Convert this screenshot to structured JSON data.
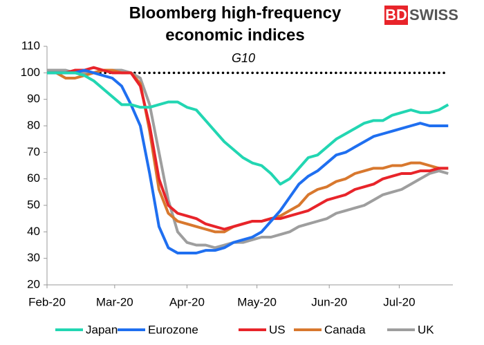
{
  "chart_data": {
    "type": "line",
    "title": [
      "Bloomberg high-frequency",
      "economic indices"
    ],
    "subtitle": "G10",
    "logo": {
      "mark": "BD",
      "text": "SWISS"
    },
    "x": [
      0,
      4,
      8,
      12,
      16,
      20,
      24,
      28,
      32,
      36,
      40,
      44,
      48,
      52,
      56,
      60,
      64,
      68,
      72,
      76,
      80,
      84,
      88,
      92,
      96,
      100,
      104,
      108,
      112,
      116,
      120,
      124,
      128,
      132,
      136,
      140,
      144,
      148,
      152,
      156,
      160,
      164,
      168,
      172
    ],
    "xlim": [
      0,
      174
    ],
    "xticks": [
      {
        "value": 0,
        "label": "Feb-20"
      },
      {
        "value": 29,
        "label": "Mar-20"
      },
      {
        "value": 60,
        "label": "Apr-20"
      },
      {
        "value": 90,
        "label": "May-20"
      },
      {
        "value": 121,
        "label": "Jun-20"
      },
      {
        "value": 151,
        "label": "Jul-20"
      }
    ],
    "ylim": [
      20,
      110
    ],
    "yticks": [
      20,
      30,
      40,
      50,
      60,
      70,
      80,
      90,
      100,
      110
    ],
    "reference_line": 100,
    "legend": "bottom",
    "series": [
      {
        "name": "Japan",
        "color": "#22d6b2",
        "values": [
          100,
          100,
          100,
          100,
          99,
          97,
          94,
          91,
          88,
          88,
          87,
          87,
          88,
          89,
          89,
          87,
          86,
          82,
          78,
          74,
          71,
          68,
          66,
          65,
          62,
          58,
          60,
          64,
          68,
          69,
          72,
          75,
          77,
          79,
          81,
          82,
          82,
          84,
          85,
          86,
          85,
          85,
          86,
          88
        ]
      },
      {
        "name": "Eurozone",
        "color": "#1f6ff0",
        "values": [
          100,
          100,
          100,
          100,
          101,
          100,
          99,
          98,
          95,
          88,
          80,
          62,
          42,
          34,
          32,
          32,
          32,
          33,
          33,
          34,
          36,
          37,
          38,
          40,
          44,
          48,
          53,
          58,
          61,
          63,
          66,
          69,
          70,
          72,
          74,
          76,
          77,
          78,
          79,
          80,
          81,
          80,
          80,
          80
        ]
      },
      {
        "name": "US",
        "color": "#e8242a",
        "values": [
          100,
          100,
          100,
          101,
          101,
          102,
          101,
          100,
          100,
          100,
          95,
          80,
          60,
          50,
          47,
          46,
          45,
          43,
          42,
          41,
          42,
          43,
          44,
          44,
          45,
          45,
          46,
          47,
          48,
          50,
          52,
          53,
          54,
          56,
          57,
          58,
          60,
          61,
          62,
          62,
          63,
          63,
          64,
          64
        ]
      },
      {
        "name": "Canada",
        "color": "#d8782e",
        "values": [
          100,
          100,
          98,
          98,
          99,
          100,
          101,
          101,
          100,
          100,
          96,
          78,
          56,
          47,
          44,
          43,
          42,
          41,
          40,
          40,
          42,
          43,
          44,
          44,
          45,
          46,
          48,
          50,
          54,
          56,
          57,
          59,
          60,
          62,
          63,
          64,
          64,
          65,
          65,
          66,
          66,
          65,
          64,
          64
        ]
      },
      {
        "name": "UK",
        "color": "#9e9e9e",
        "values": [
          101,
          101,
          101,
          100,
          100,
          100,
          101,
          101,
          101,
          100,
          98,
          88,
          70,
          52,
          40,
          36,
          35,
          35,
          34,
          35,
          36,
          36,
          37,
          38,
          38,
          39,
          40,
          42,
          43,
          44,
          45,
          47,
          48,
          49,
          50,
          52,
          54,
          55,
          56,
          58,
          60,
          62,
          63,
          62
        ]
      }
    ]
  }
}
